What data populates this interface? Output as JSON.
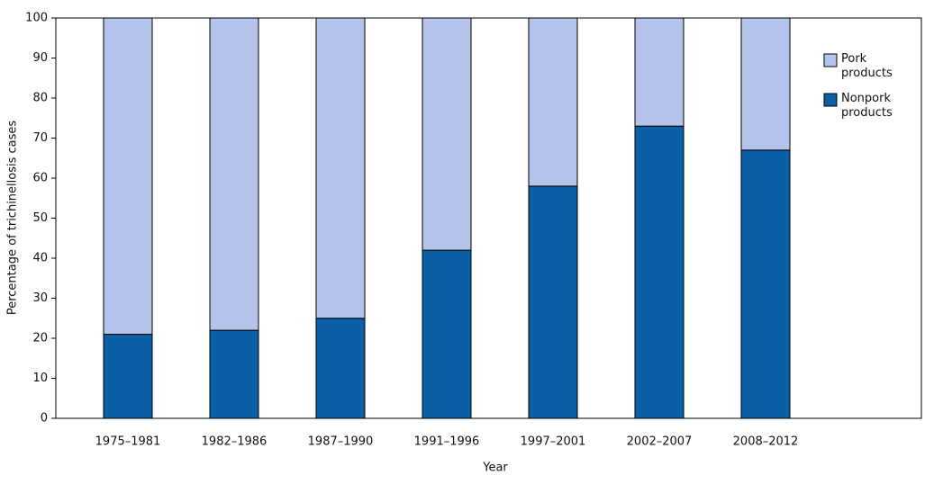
{
  "chart_data": {
    "type": "stacked_bar",
    "x_label": "Year",
    "y_label": "Percentage of trichinellosis cases",
    "categories": [
      "1975–1981",
      "1982–1986",
      "1987–1990",
      "1991–1996",
      "1997–2001",
      "2002–2007",
      "2008–2012"
    ],
    "series": [
      {
        "name": "Nonpork products",
        "color": "#0b5fa5",
        "values": [
          21,
          22,
          25,
          42,
          58,
          73,
          67
        ]
      },
      {
        "name": "Pork products",
        "color": "#b4c4ea",
        "values": [
          79,
          78,
          75,
          58,
          42,
          27,
          33
        ]
      }
    ],
    "ylim": [
      0,
      100
    ],
    "yticks": [
      0,
      10,
      20,
      30,
      40,
      50,
      60,
      70,
      80,
      90,
      100
    ],
    "grid": false,
    "legend": "upper right"
  }
}
